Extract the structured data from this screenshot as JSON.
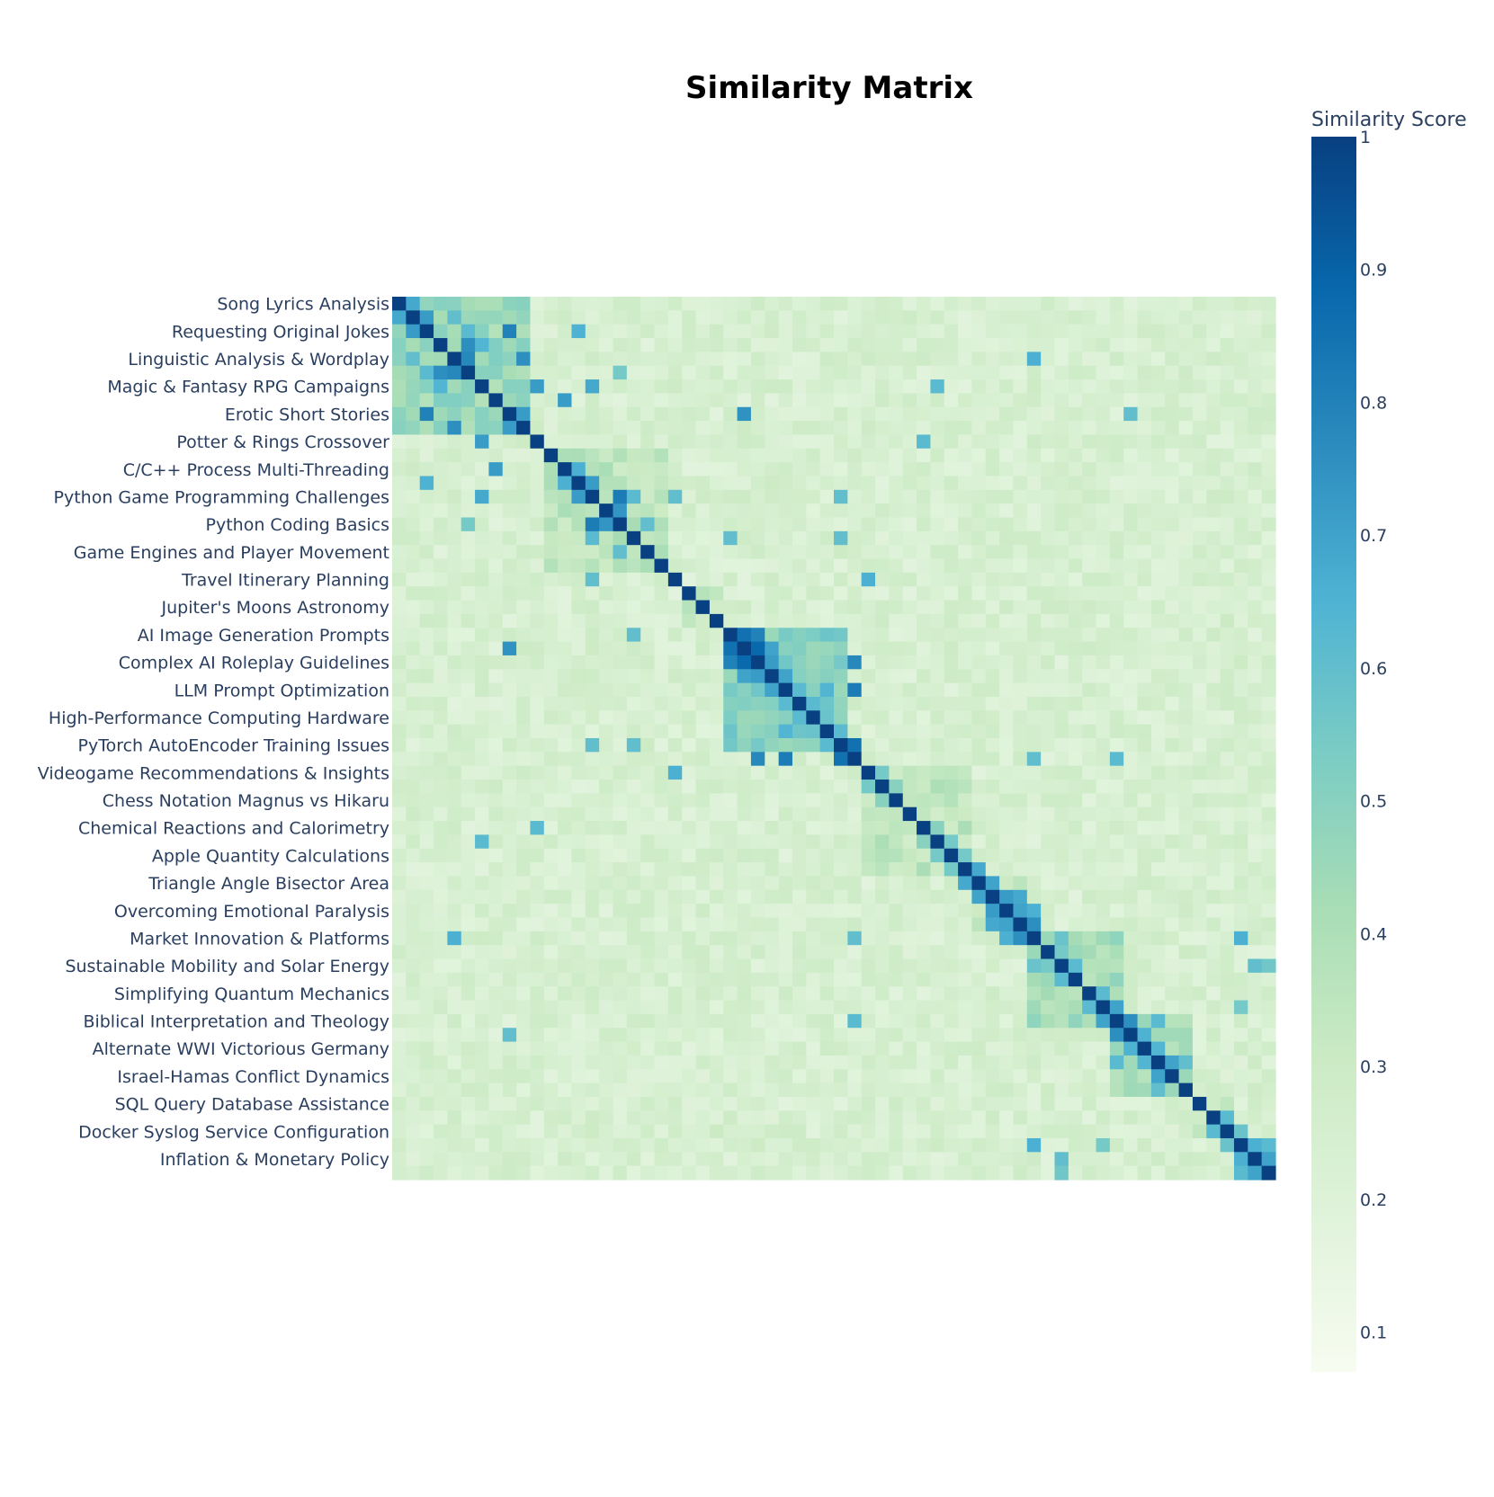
{
  "chart_data": {
    "type": "heatmap",
    "title": "Similarity Matrix",
    "colorbar": {
      "title": "Similarity Score",
      "range": [
        0.07,
        1.0
      ],
      "ticks": [
        "1",
        "0.9",
        "0.8",
        "0.7",
        "0.6",
        "0.5",
        "0.4",
        "0.3",
        "0.2",
        "0.1"
      ],
      "colorscale": [
        "#f7fcf0",
        "#e0f3db",
        "#ccebc5",
        "#a8ddb5",
        "#7bccc4",
        "#4eb3d3",
        "#2b8cbe",
        "#0868ac",
        "#084081"
      ]
    },
    "size": 64,
    "y_tick_labels": [
      "Song Lyrics Analysis",
      "Requesting Original Jokes",
      "Linguistic Analysis & Wordplay",
      "Magic & Fantasy RPG Campaigns",
      "Erotic Short Stories",
      "Potter & Rings Crossover",
      "C/C++ Process Multi-Threading",
      "Python Game Programming Challenges",
      "Python Coding Basics",
      "Game Engines and Player Movement",
      "Travel Itinerary Planning",
      "Jupiter's Moons Astronomy",
      "AI Image Generation Prompts",
      "Complex AI Roleplay Guidelines",
      "LLM Prompt Optimization",
      "High-Performance Computing Hardware",
      "PyTorch AutoEncoder Training Issues",
      "Videogame Recommendations & Insights",
      "Chess Notation Magnus vs Hikaru",
      "Chemical Reactions and Calorimetry",
      "Apple Quantity Calculations",
      "Triangle Angle Bisector Area",
      "Overcoming Emotional Paralysis",
      "Market Innovation & Platforms",
      "Sustainable Mobility and Solar Energy",
      "Simplifying Quantum Mechanics",
      "Biblical Interpretation and Theology",
      "Alternate WWI Victorious Germany",
      "Israel-Hamas Conflict Dynamics",
      "SQL Query Database Assistance",
      "Docker Syslog Service Configuration",
      "Inflation & Monetary Policy"
    ],
    "y_tick_rows": [
      0,
      2,
      4,
      6,
      8,
      10,
      12,
      14,
      16,
      18,
      20,
      22,
      24,
      26,
      28,
      30,
      32,
      34,
      36,
      38,
      40,
      42,
      44,
      46,
      48,
      50,
      52,
      54,
      56,
      58,
      60,
      62
    ],
    "diagonal": 1.0,
    "clusters": [
      {
        "rows": [
          0,
          10
        ],
        "within": 0.45
      },
      {
        "rows": [
          11,
          20
        ],
        "within": 0.36
      },
      {
        "rows": [
          21,
          24
        ],
        "within": 0.33
      },
      {
        "rows": [
          24,
          33
        ],
        "within": 0.52
      },
      {
        "rows": [
          34,
          42
        ],
        "within": 0.34
      },
      {
        "rows": [
          42,
          46
        ],
        "within": 0.36
      },
      {
        "rows": [
          46,
          53
        ],
        "within": 0.42
      },
      {
        "rows": [
          52,
          58
        ],
        "within": 0.4
      },
      {
        "rows": [
          58,
          61
        ],
        "within": 0.33
      },
      {
        "rows": [
          61,
          64
        ],
        "within": 0.62
      }
    ],
    "background_level": 0.24,
    "highlights": [
      {
        "i": 0,
        "j": 1,
        "v": 0.68
      },
      {
        "i": 1,
        "j": 2,
        "v": 0.72
      },
      {
        "i": 1,
        "j": 4,
        "v": 0.6
      },
      {
        "i": 2,
        "j": 8,
        "v": 0.8
      },
      {
        "i": 2,
        "j": 5,
        "v": 0.62
      },
      {
        "i": 2,
        "j": 13,
        "v": 0.65
      },
      {
        "i": 3,
        "j": 5,
        "v": 0.76
      },
      {
        "i": 3,
        "j": 6,
        "v": 0.64
      },
      {
        "i": 4,
        "j": 5,
        "v": 0.78
      },
      {
        "i": 4,
        "j": 9,
        "v": 0.76
      },
      {
        "i": 4,
        "j": 46,
        "v": 0.66
      },
      {
        "i": 5,
        "j": 16,
        "v": 0.55
      },
      {
        "i": 6,
        "j": 14,
        "v": 0.68
      },
      {
        "i": 6,
        "j": 39,
        "v": 0.62
      },
      {
        "i": 7,
        "j": 12,
        "v": 0.72
      },
      {
        "i": 8,
        "j": 9,
        "v": 0.72
      },
      {
        "i": 8,
        "j": 25,
        "v": 0.75
      },
      {
        "i": 8,
        "j": 53,
        "v": 0.6
      },
      {
        "i": 10,
        "j": 6,
        "v": 0.72
      },
      {
        "i": 10,
        "j": 38,
        "v": 0.62
      },
      {
        "i": 12,
        "j": 13,
        "v": 0.66
      },
      {
        "i": 13,
        "j": 14,
        "v": 0.72
      },
      {
        "i": 14,
        "j": 16,
        "v": 0.82
      },
      {
        "i": 14,
        "j": 17,
        "v": 0.62
      },
      {
        "i": 14,
        "j": 32,
        "v": 0.6
      },
      {
        "i": 15,
        "j": 16,
        "v": 0.74
      },
      {
        "i": 16,
        "j": 18,
        "v": 0.6
      },
      {
        "i": 17,
        "j": 24,
        "v": 0.6
      },
      {
        "i": 17,
        "j": 32,
        "v": 0.6
      },
      {
        "i": 20,
        "j": 34,
        "v": 0.66
      },
      {
        "i": 20,
        "j": 14,
        "v": 0.6
      },
      {
        "i": 24,
        "j": 25,
        "v": 0.85
      },
      {
        "i": 24,
        "j": 26,
        "v": 0.8
      },
      {
        "i": 25,
        "j": 26,
        "v": 0.88
      },
      {
        "i": 25,
        "j": 27,
        "v": 0.7
      },
      {
        "i": 26,
        "j": 27,
        "v": 0.72
      },
      {
        "i": 26,
        "j": 33,
        "v": 0.78
      },
      {
        "i": 27,
        "j": 28,
        "v": 0.7
      },
      {
        "i": 28,
        "j": 29,
        "v": 0.62
      },
      {
        "i": 28,
        "j": 31,
        "v": 0.64
      },
      {
        "i": 28,
        "j": 33,
        "v": 0.82
      },
      {
        "i": 29,
        "j": 30,
        "v": 0.62
      },
      {
        "i": 30,
        "j": 31,
        "v": 0.58
      },
      {
        "i": 31,
        "j": 32,
        "v": 0.62
      },
      {
        "i": 32,
        "j": 33,
        "v": 0.85
      },
      {
        "i": 33,
        "j": 46,
        "v": 0.6
      },
      {
        "i": 33,
        "j": 52,
        "v": 0.62
      },
      {
        "i": 34,
        "j": 35,
        "v": 0.55
      },
      {
        "i": 35,
        "j": 36,
        "v": 0.5
      },
      {
        "i": 38,
        "j": 39,
        "v": 0.5
      },
      {
        "i": 39,
        "j": 40,
        "v": 0.55
      },
      {
        "i": 40,
        "j": 41,
        "v": 0.55
      },
      {
        "i": 41,
        "j": 42,
        "v": 0.68
      },
      {
        "i": 42,
        "j": 43,
        "v": 0.7
      },
      {
        "i": 43,
        "j": 44,
        "v": 0.72
      },
      {
        "i": 43,
        "j": 45,
        "v": 0.68
      },
      {
        "i": 44,
        "j": 45,
        "v": 0.7
      },
      {
        "i": 44,
        "j": 46,
        "v": 0.66
      },
      {
        "i": 45,
        "j": 46,
        "v": 0.76
      },
      {
        "i": 46,
        "j": 48,
        "v": 0.58
      },
      {
        "i": 47,
        "j": 48,
        "v": 0.55
      },
      {
        "i": 48,
        "j": 49,
        "v": 0.62
      },
      {
        "i": 50,
        "j": 51,
        "v": 0.62
      },
      {
        "i": 51,
        "j": 52,
        "v": 0.7
      },
      {
        "i": 52,
        "j": 53,
        "v": 0.76
      },
      {
        "i": 52,
        "j": 55,
        "v": 0.62
      },
      {
        "i": 53,
        "j": 54,
        "v": 0.65
      },
      {
        "i": 54,
        "j": 55,
        "v": 0.64
      },
      {
        "i": 55,
        "j": 56,
        "v": 0.7
      },
      {
        "i": 55,
        "j": 57,
        "v": 0.6
      },
      {
        "i": 59,
        "j": 60,
        "v": 0.62
      },
      {
        "i": 60,
        "j": 61,
        "v": 0.58
      },
      {
        "i": 61,
        "j": 62,
        "v": 0.66
      },
      {
        "i": 61,
        "j": 63,
        "v": 0.62
      },
      {
        "i": 62,
        "j": 63,
        "v": 0.7
      },
      {
        "i": 46,
        "j": 61,
        "v": 0.66
      },
      {
        "i": 48,
        "j": 62,
        "v": 0.6
      },
      {
        "i": 48,
        "j": 63,
        "v": 0.56
      },
      {
        "i": 51,
        "j": 61,
        "v": 0.55
      }
    ]
  }
}
